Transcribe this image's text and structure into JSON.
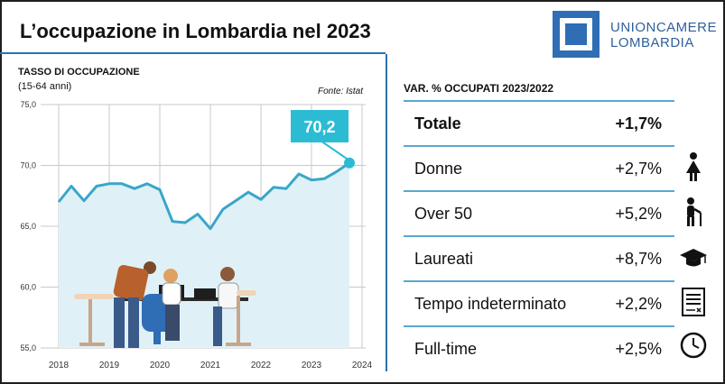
{
  "header": {
    "title": "L’occupazione in Lombardia nel 2023",
    "brand_line1": "UNIONCAMERE",
    "brand_line2": "LOMBARDIA"
  },
  "chart_section": {
    "heading": "TASSO DI OCCUPAZIONE",
    "subheading": "(15-64 anni)",
    "source": "Fonte: Istat",
    "callout": "70,2"
  },
  "table": {
    "heading": "VAR. % OCCUPATI 2023/2022",
    "rows": [
      {
        "label": "Totale",
        "value": "+1,7%",
        "icon": ""
      },
      {
        "label": "Donne",
        "value": "+2,7%",
        "icon": "woman-icon"
      },
      {
        "label": "Over 50",
        "value": "+5,2%",
        "icon": "elderly-person-icon"
      },
      {
        "label": "Laureati",
        "value": "+8,7%",
        "icon": "graduation-cap-icon"
      },
      {
        "label": "Tempo indeterminato",
        "value": "+2,2%",
        "icon": "contract-document-icon"
      },
      {
        "label": "Full-time",
        "value": "+2,5%",
        "icon": "clock-icon"
      }
    ]
  },
  "colors": {
    "accent_blue": "#2f6db5",
    "line": "#3aa6c9",
    "area_fill": "#dff1f7",
    "callout": "#2bbcd4",
    "row_rule": "#5aa8cf"
  },
  "chart_data": {
    "type": "area",
    "title": "TASSO DI OCCUPAZIONE",
    "subtitle": "(15-64 anni)",
    "xlabel": "",
    "ylabel": "",
    "xlim": [
      2018,
      2024
    ],
    "ylim": [
      55,
      75
    ],
    "x_ticks": [
      "2018",
      "2019",
      "2020",
      "2021",
      "2022",
      "2023",
      "2024"
    ],
    "y_ticks": [
      "55,0",
      "60,0",
      "65,0",
      "70,0",
      "75,0"
    ],
    "grid": true,
    "series": [
      {
        "x": [
          2018.0,
          2018.25,
          2018.5,
          2018.75,
          2019.0,
          2019.25,
          2019.5,
          2019.75,
          2020.0,
          2020.25,
          2020.5,
          2020.75,
          2021.0,
          2021.25,
          2021.5,
          2021.75,
          2022.0,
          2022.25,
          2022.5,
          2022.75,
          2023.0,
          2023.25,
          2023.5,
          2023.75
        ],
        "y": [
          67.0,
          68.3,
          67.1,
          68.3,
          68.5,
          68.5,
          68.1,
          68.5,
          68.0,
          65.4,
          65.3,
          66.0,
          64.8,
          66.4,
          67.1,
          67.8,
          67.2,
          68.2,
          68.1,
          69.3,
          68.8,
          68.9,
          69.5,
          70.2
        ]
      }
    ],
    "annotations": [
      "70,2"
    ]
  }
}
